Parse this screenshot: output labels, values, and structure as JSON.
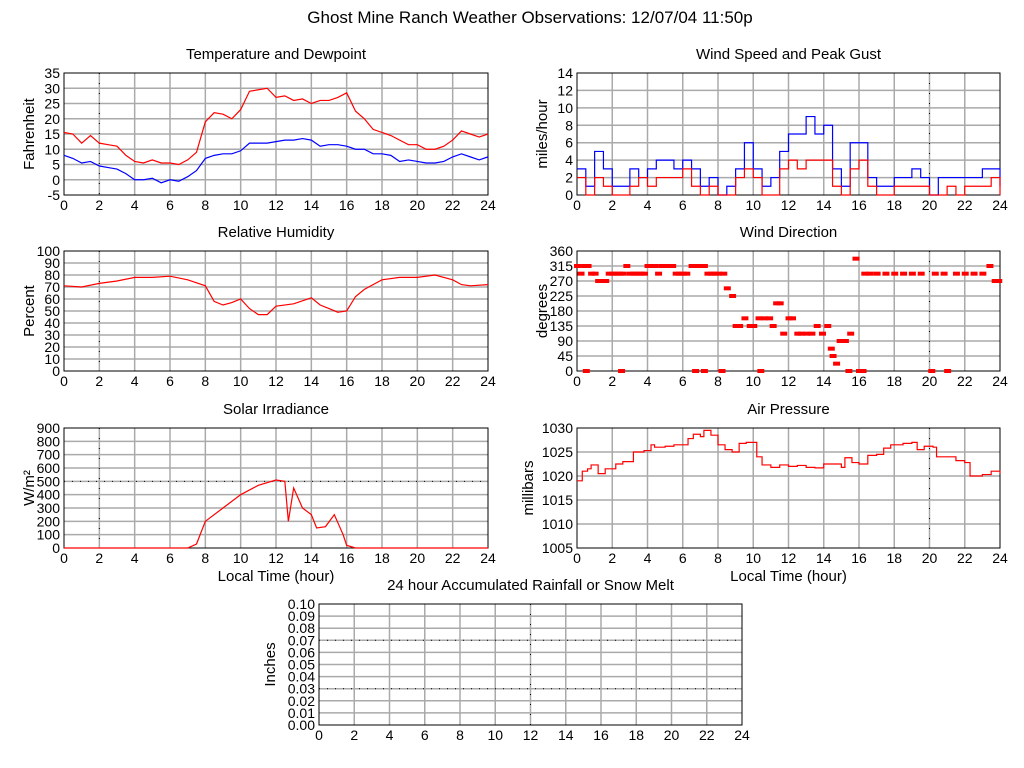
{
  "page_title": "Ghost Mine Ranch Weather Observations: 12/07/04 11:50p",
  "chart_data": [
    {
      "type": "line",
      "title": "Temperature and Dewpoint",
      "ylabel": "Fahrenheit",
      "xlabel": "",
      "xlim": [
        0,
        24
      ],
      "ylim": [
        -5,
        35
      ],
      "xticks": [
        "0",
        "2",
        "4",
        "6",
        "8",
        "10",
        "12",
        "14",
        "16",
        "18",
        "20",
        "22",
        "24"
      ],
      "yticks": [
        "-5",
        "0",
        "5",
        "10",
        "15",
        "20",
        "25",
        "30",
        "35"
      ],
      "grid": true,
      "reference_x": [
        2
      ],
      "reference_y": [],
      "series": [
        {
          "name": "Temperature",
          "color": "#ff0000",
          "style": "line",
          "x": [
            0,
            0.5,
            1,
            1.5,
            2,
            2.5,
            3,
            3.5,
            4,
            4.5,
            5,
            5.5,
            6,
            6.5,
            7,
            7.5,
            8,
            8.5,
            9,
            9.5,
            10,
            10.5,
            11,
            11.5,
            12,
            12.5,
            13,
            13.5,
            14,
            14.5,
            15,
            15.5,
            16,
            16.5,
            17,
            17.5,
            18,
            18.5,
            19,
            19.5,
            20,
            20.5,
            21,
            21.5,
            22,
            22.5,
            23,
            23.5,
            24
          ],
          "y": [
            15.5,
            15,
            12,
            14.5,
            12,
            11.5,
            11,
            8,
            6,
            5.5,
            6.5,
            5.5,
            5.5,
            5,
            6.5,
            9,
            19,
            22,
            21.5,
            20,
            23,
            29,
            29.5,
            30,
            27,
            27.5,
            26,
            26.5,
            25,
            26,
            26,
            27,
            28.5,
            22.5,
            20,
            16.5,
            15.5,
            14.5,
            13,
            11.5,
            11.5,
            10,
            10,
            11,
            13,
            16,
            15,
            14,
            15
          ]
        },
        {
          "name": "Dewpoint",
          "color": "#0000ff",
          "style": "line",
          "x": [
            0,
            0.5,
            1,
            1.5,
            2,
            2.5,
            3,
            3.5,
            4,
            4.5,
            5,
            5.5,
            6,
            6.5,
            7,
            7.5,
            8,
            8.5,
            9,
            9.5,
            10,
            10.5,
            11,
            11.5,
            12,
            12.5,
            13,
            13.5,
            14,
            14.5,
            15,
            15.5,
            16,
            16.5,
            17,
            17.5,
            18,
            18.5,
            19,
            19.5,
            20,
            20.5,
            21,
            21.5,
            22,
            22.5,
            23,
            23.5,
            24
          ],
          "y": [
            8,
            7,
            5.5,
            6,
            4.5,
            4,
            3.5,
            2,
            0,
            0,
            0.5,
            -1,
            0,
            -0.5,
            1,
            3,
            7,
            8,
            8.5,
            8.5,
            9.5,
            12,
            12,
            12,
            12.5,
            13,
            13,
            13.5,
            13,
            11,
            11.5,
            11.5,
            11,
            10,
            10,
            8.5,
            8.5,
            8,
            6,
            6.5,
            6,
            5.5,
            5.5,
            6,
            7.5,
            8.5,
            7.5,
            6.5,
            7.5
          ]
        }
      ]
    },
    {
      "type": "line",
      "title": "Wind Speed and Peak Gust",
      "ylabel": "miles/hour",
      "xlabel": "",
      "xlim": [
        0,
        24
      ],
      "ylim": [
        0,
        14
      ],
      "xticks": [
        "0",
        "2",
        "4",
        "6",
        "8",
        "10",
        "12",
        "14",
        "16",
        "18",
        "20",
        "22",
        "24"
      ],
      "yticks": [
        "0",
        "2",
        "4",
        "6",
        "8",
        "10",
        "12",
        "14"
      ],
      "grid": true,
      "reference_x": [
        20
      ],
      "reference_y": [],
      "series": [
        {
          "name": "Peak Gust",
          "color": "#0000ff",
          "style": "step",
          "x": [
            0,
            0.5,
            1,
            1.5,
            2,
            2.5,
            3,
            3.5,
            4,
            4.5,
            5,
            5.5,
            6,
            6.5,
            7,
            7.5,
            8,
            8.5,
            9,
            9.5,
            10,
            10.5,
            11,
            11.5,
            12,
            12.5,
            13,
            13.5,
            14,
            14.5,
            15,
            15.5,
            16,
            16.5,
            17,
            17.5,
            18,
            18.5,
            19,
            19.5,
            20,
            20.5,
            21,
            21.5,
            22,
            22.5,
            23,
            23.5,
            24
          ],
          "y": [
            3,
            1,
            5,
            3,
            1,
            1,
            3,
            2,
            3,
            4,
            4,
            3,
            4,
            3,
            1,
            2,
            0,
            1,
            3,
            6,
            3,
            1,
            2,
            5,
            7,
            7,
            9,
            7,
            8,
            3,
            1,
            6,
            6,
            2,
            1,
            1,
            2,
            2,
            3,
            2,
            0,
            2,
            2,
            2,
            2,
            2,
            3,
            3,
            1
          ]
        },
        {
          "name": "Wind Speed",
          "color": "#ff0000",
          "style": "step",
          "x": [
            0,
            0.5,
            1,
            1.5,
            2,
            2.5,
            3,
            3.5,
            4,
            4.5,
            5,
            5.5,
            6,
            6.5,
            7,
            7.5,
            8,
            8.5,
            9,
            9.5,
            10,
            10.5,
            11,
            11.5,
            12,
            12.5,
            13,
            13.5,
            14,
            14.5,
            15,
            15.5,
            16,
            16.5,
            17,
            17.5,
            18,
            18.5,
            19,
            19.5,
            20,
            20.5,
            21,
            21.5,
            22,
            22.5,
            23,
            23.5,
            24
          ],
          "y": [
            2,
            0,
            2,
            1,
            0,
            0,
            1,
            2,
            1,
            2,
            2,
            2,
            3,
            1,
            0,
            1,
            0,
            0,
            2,
            3,
            2,
            0,
            0,
            3,
            4,
            3,
            4,
            4,
            4,
            1,
            0,
            3,
            4,
            1,
            0,
            0,
            1,
            1,
            1,
            1,
            0,
            0,
            1,
            0,
            1,
            1,
            1,
            2,
            0
          ]
        }
      ]
    },
    {
      "type": "line",
      "title": "Relative Humidity",
      "ylabel": "Percent",
      "xlabel": "",
      "xlim": [
        0,
        24
      ],
      "ylim": [
        0,
        100
      ],
      "xticks": [
        "0",
        "2",
        "4",
        "6",
        "8",
        "10",
        "12",
        "14",
        "16",
        "18",
        "20",
        "22",
        "24"
      ],
      "yticks": [
        "0",
        "10",
        "20",
        "30",
        "40",
        "50",
        "60",
        "70",
        "80",
        "90",
        "100"
      ],
      "grid": true,
      "reference_x": [
        2
      ],
      "reference_y": [],
      "series": [
        {
          "name": "Relative Humidity",
          "color": "#ff0000",
          "style": "line",
          "x": [
            0,
            1,
            2,
            3,
            4,
            5,
            6,
            7,
            8,
            8.5,
            9,
            9.5,
            10,
            10.5,
            11,
            11.5,
            12,
            13,
            14,
            14.5,
            15,
            15.5,
            16,
            16.5,
            17,
            18,
            19,
            20,
            21,
            22,
            22.5,
            23,
            24
          ],
          "y": [
            71,
            70,
            73,
            75,
            78,
            78,
            79,
            76,
            71,
            58,
            55,
            57,
            60,
            52,
            47,
            47,
            54,
            56,
            61,
            55,
            52,
            49,
            50,
            62,
            68,
            76,
            78,
            78,
            80,
            76,
            72,
            71,
            72
          ]
        }
      ]
    },
    {
      "type": "scatter",
      "title": "Wind Direction",
      "ylabel": "degrees",
      "xlabel": "",
      "xlim": [
        0,
        24
      ],
      "ylim": [
        0,
        360
      ],
      "xticks": [
        "0",
        "2",
        "4",
        "6",
        "8",
        "10",
        "12",
        "14",
        "16",
        "18",
        "20",
        "22",
        "24"
      ],
      "yticks": [
        "0",
        "45",
        "90",
        "135",
        "180",
        "225",
        "270",
        "315",
        "360"
      ],
      "grid": true,
      "reference_x": [
        20
      ],
      "reference_y": [],
      "series": [
        {
          "name": "Wind Direction",
          "color": "#ff0000",
          "style": "scatter",
          "x": [
            0,
            0.2,
            0.4,
            0.6,
            0.8,
            1,
            1.2,
            1.4,
            1.6,
            1.8,
            2,
            2.2,
            2.4,
            2.6,
            2.8,
            3,
            3.2,
            3.4,
            3.6,
            3.8,
            4,
            4.2,
            4.4,
            4.6,
            4.8,
            5,
            5.2,
            5.4,
            5.6,
            5.8,
            6,
            6.2,
            6.5,
            6.7,
            7,
            7.2,
            7.4,
            7.6,
            7.8,
            8,
            8.3,
            8.5,
            8.8,
            9,
            9.2,
            9.5,
            9.8,
            10,
            10.3,
            10.6,
            10.9,
            11.1,
            11.3,
            11.5,
            11.7,
            12,
            12.2,
            12.5,
            12.7,
            13,
            13.3,
            13.6,
            13.9,
            14.2,
            14.4,
            14.5,
            14.7,
            14.9,
            15.2,
            15.5,
            15.8,
            16,
            16.3,
            16.6,
            17,
            17.5,
            18,
            18.5,
            19,
            19.5,
            20.3,
            20.8,
            21.5,
            22,
            22.5,
            23,
            23.4,
            23.7,
            23.9,
            0.5,
            2.5,
            6.7,
            7.2,
            8.2,
            10.4,
            15.4,
            16.2,
            20.1,
            21
          ],
          "y": [
            315,
            292,
            315,
            315,
            292,
            292,
            270,
            270,
            270,
            292,
            292,
            292,
            292,
            292,
            315,
            292,
            292,
            292,
            292,
            292,
            315,
            315,
            315,
            292,
            315,
            315,
            315,
            315,
            292,
            292,
            292,
            292,
            315,
            315,
            315,
            315,
            292,
            292,
            292,
            292,
            292,
            248,
            225,
            135,
            135,
            158,
            135,
            135,
            158,
            158,
            158,
            135,
            203,
            203,
            112,
            158,
            158,
            112,
            112,
            112,
            112,
            135,
            112,
            135,
            67,
            45,
            22,
            90,
            90,
            112,
            337,
            0,
            292,
            292,
            292,
            292,
            292,
            292,
            292,
            292,
            292,
            292,
            292,
            292,
            292,
            292,
            315,
            270,
            270,
            0,
            0,
            0,
            0,
            0,
            0,
            0,
            0,
            0,
            0
          ]
        }
      ]
    },
    {
      "type": "line",
      "title": "Solar Irradiance",
      "ylabel": "W/m²",
      "xlabel": "Local Time (hour)",
      "xlim": [
        0,
        24
      ],
      "ylim": [
        0,
        900
      ],
      "xticks": [
        "0",
        "2",
        "4",
        "6",
        "8",
        "10",
        "12",
        "14",
        "16",
        "18",
        "20",
        "22",
        "24"
      ],
      "yticks": [
        "0",
        "100",
        "200",
        "300",
        "400",
        "500",
        "600",
        "700",
        "800",
        "900"
      ],
      "grid": true,
      "reference_x": [
        2
      ],
      "reference_y": [
        500
      ],
      "series": [
        {
          "name": "Solar Irradiance",
          "color": "#ff0000",
          "style": "line",
          "x": [
            0,
            7,
            7.5,
            8,
            9,
            10,
            11,
            12,
            12.5,
            12.7,
            13,
            13.5,
            14,
            14.3,
            14.8,
            15.3,
            15.8,
            16,
            16.5,
            24
          ],
          "y": [
            0,
            0,
            30,
            200,
            300,
            400,
            470,
            510,
            500,
            200,
            450,
            300,
            250,
            150,
            160,
            250,
            100,
            20,
            0,
            0
          ]
        }
      ]
    },
    {
      "type": "line",
      "title": "Air Pressure",
      "ylabel": "millibars",
      "xlabel": "Local Time (hour)",
      "xlim": [
        0,
        24
      ],
      "ylim": [
        1005,
        1030
      ],
      "xticks": [
        "0",
        "2",
        "4",
        "6",
        "8",
        "10",
        "12",
        "14",
        "16",
        "18",
        "20",
        "22",
        "24"
      ],
      "yticks": [
        "1005",
        "1010",
        "1015",
        "1020",
        "1025",
        "1030"
      ],
      "grid": true,
      "reference_x": [
        20
      ],
      "reference_y": [],
      "series": [
        {
          "name": "Air Pressure",
          "color": "#ff0000",
          "style": "step",
          "x": [
            0,
            0.3,
            0.6,
            0.8,
            1.2,
            1.6,
            2.2,
            2.6,
            3.2,
            3.8,
            4.2,
            4.4,
            5,
            5.5,
            6,
            6.3,
            6.6,
            7,
            7.2,
            7.6,
            8,
            8.4,
            8.8,
            9.2,
            9.6,
            10,
            10.2,
            10.5,
            11,
            11.5,
            12,
            12.5,
            13,
            13.5,
            14,
            14.5,
            15,
            15.2,
            15.6,
            16,
            16.5,
            17,
            17.4,
            17.8,
            18.5,
            19,
            19.3,
            19.7,
            20.2,
            20.4,
            21.5,
            22,
            22.3,
            23,
            23.5,
            24
          ],
          "y": [
            1019,
            1021,
            1021.5,
            1022.3,
            1020.5,
            1021.5,
            1022.5,
            1023,
            1025,
            1025.3,
            1026.5,
            1026,
            1026.2,
            1026.5,
            1026.5,
            1027.8,
            1028.7,
            1028.2,
            1029.5,
            1028.5,
            1026.5,
            1025.5,
            1025,
            1026.8,
            1027,
            1027,
            1024,
            1022.3,
            1021.8,
            1022.3,
            1022,
            1022.2,
            1021.8,
            1021.7,
            1022.5,
            1022.5,
            1021.8,
            1023.8,
            1022.8,
            1022.5,
            1024.3,
            1024.5,
            1025.8,
            1026.5,
            1026.8,
            1027,
            1025.5,
            1026.2,
            1026,
            1024,
            1023.2,
            1022.8,
            1020,
            1020.3,
            1021,
            1020.5
          ]
        }
      ]
    },
    {
      "type": "line",
      "title": "24 hour Accumulated Rainfall or Snow Melt",
      "ylabel": "Inches",
      "xlabel": "",
      "xlim": [
        0,
        24
      ],
      "ylim": [
        0,
        0.1
      ],
      "xticks": [
        "0",
        "2",
        "4",
        "6",
        "8",
        "10",
        "12",
        "14",
        "16",
        "18",
        "20",
        "22",
        "24"
      ],
      "yticks": [
        "0.00",
        "0.01",
        "0.02",
        "0.03",
        "0.04",
        "0.05",
        "0.06",
        "0.07",
        "0.08",
        "0.09",
        "0.10"
      ],
      "grid": true,
      "reference_x": [
        12
      ],
      "reference_y": [
        0.07,
        0.03
      ],
      "series": []
    }
  ]
}
